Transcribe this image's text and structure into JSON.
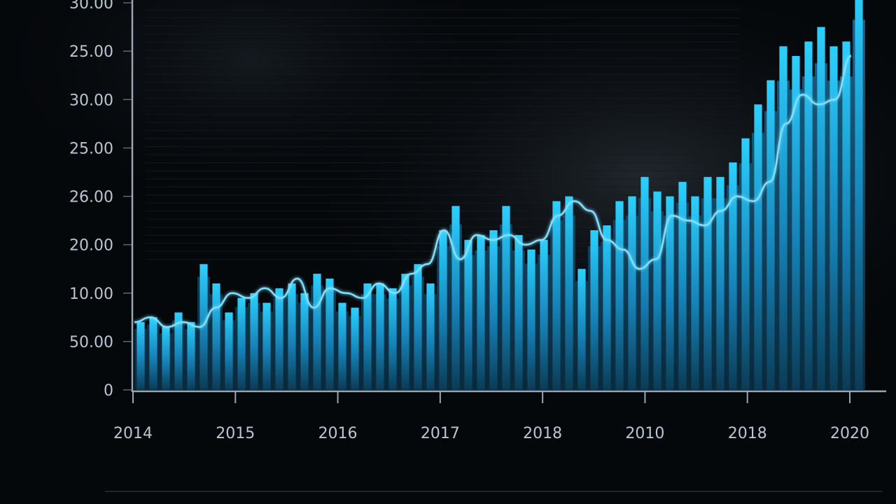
{
  "colors": {
    "background": "#05080b",
    "bar": "#1aa7e0",
    "line": "#7fe0ff",
    "axis": "#9aa6b2",
    "tick_text": "#b9c6d2"
  },
  "chart_data": {
    "type": "bar",
    "title": "",
    "xlabel": "",
    "ylabel": "",
    "ylim": [
      0,
      8
    ],
    "grid": true,
    "legend": "none",
    "y_ticks": [
      {
        "label": "0",
        "value": 0
      },
      {
        "label": "50.00",
        "value": 1
      },
      {
        "label": "10.00",
        "value": 2
      },
      {
        "label": "20.00",
        "value": 3
      },
      {
        "label": "26.00",
        "value": 4
      },
      {
        "label": "25.00",
        "value": 5
      },
      {
        "label": "30.00",
        "value": 6
      },
      {
        "label": "25.00",
        "value": 7
      },
      {
        "label": "30.00",
        "value": 8
      }
    ],
    "x_ticks": [
      "2014",
      "2015",
      "2016",
      "2017",
      "2018",
      "2010",
      "2018",
      "2020"
    ],
    "bars": [
      1.4,
      1.5,
      1.3,
      1.6,
      1.4,
      2.6,
      2.2,
      1.6,
      1.9,
      2.0,
      1.8,
      2.1,
      2.2,
      2.0,
      2.4,
      2.3,
      1.8,
      1.7,
      2.2,
      2.2,
      2.1,
      2.4,
      2.6,
      2.2,
      3.3,
      3.8,
      3.1,
      3.2,
      3.3,
      3.8,
      3.2,
      2.9,
      3.1,
      3.9,
      4.0,
      2.5,
      3.3,
      3.4,
      3.9,
      4.0,
      4.4,
      4.1,
      4.0,
      4.3,
      4.0,
      4.4,
      4.4,
      4.7,
      5.2,
      5.9,
      6.4,
      7.1,
      6.9,
      7.2,
      7.5,
      7.1,
      7.2,
      8.5
    ],
    "series": [
      {
        "type": "line",
        "values": [
          1.4,
          1.5,
          1.3,
          1.4,
          1.3,
          1.7,
          2.0,
          1.9,
          2.1,
          1.9,
          2.3,
          1.7,
          2.1,
          2.0,
          1.9,
          2.2,
          2.0,
          2.4,
          2.6,
          3.3,
          2.7,
          3.2,
          3.1,
          3.2,
          3.0,
          3.1,
          3.6,
          3.9,
          3.7,
          3.1,
          2.9,
          2.5,
          2.7,
          3.6,
          3.5,
          3.4,
          3.7,
          4.0,
          3.9,
          4.3,
          5.5,
          6.1,
          5.9,
          6.0,
          6.9
        ]
      }
    ]
  }
}
